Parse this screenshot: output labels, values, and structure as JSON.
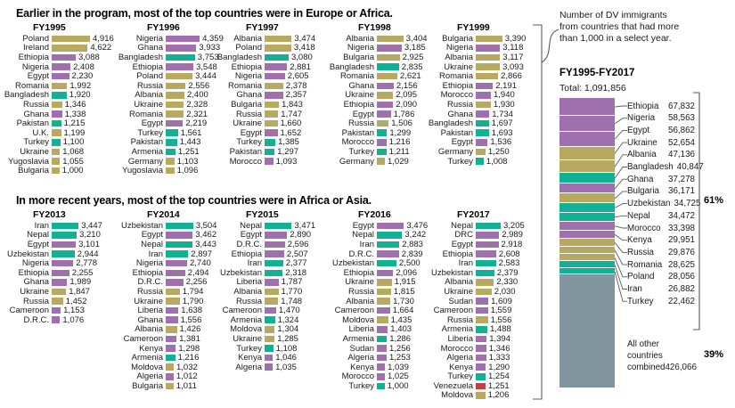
{
  "ui": {
    "annotation_lines": [
      "Number of DV immigrants",
      "from countries that had more",
      "than 1,000 in a select year."
    ],
    "summary_header": "FY1995-FY2017",
    "summary_total_label": "Total: 1,091,856",
    "named_share_label": "61%",
    "other_share_label": "39%",
    "other_label_line1": "All other countries",
    "other_label_line2": "combined",
    "other_value_label": "426,066"
  },
  "chart_data": {
    "type": "bar",
    "unit": "DV immigrants per fiscal year",
    "region_colors": {
      "europe": "#b7a95f",
      "africa": "#a06fad",
      "asia": "#12b195",
      "americas": "#c13d47",
      "other": "#80959d"
    },
    "groups": [
      {
        "title": "Earlier in the program, most of the top countries were in Europe or Africa.",
        "charts": [
          {
            "year": "FY1995",
            "rows": [
              [
                "Poland",
                4916,
                "europe"
              ],
              [
                "Ireland",
                4622,
                "europe"
              ],
              [
                "Ethiopia",
                3088,
                "africa"
              ],
              [
                "Nigeria",
                2408,
                "africa"
              ],
              [
                "Egypt",
                2230,
                "africa"
              ],
              [
                "Romania",
                1992,
                "europe"
              ],
              [
                "Bangladesh",
                1920,
                "asia"
              ],
              [
                "Russia",
                1346,
                "europe"
              ],
              [
                "Ghana",
                1338,
                "africa"
              ],
              [
                "Pakistan",
                1215,
                "asia"
              ],
              [
                "U.K.",
                1199,
                "europe"
              ],
              [
                "Turkey",
                1100,
                "asia"
              ],
              [
                "Ukraine",
                1068,
                "europe"
              ],
              [
                "Yugoslavia",
                1055,
                "europe"
              ],
              [
                "Bulgaria",
                1000,
                "europe"
              ]
            ]
          },
          {
            "year": "FY1996",
            "rows": [
              [
                "Nigeria",
                4359,
                "africa"
              ],
              [
                "Ghana",
                3933,
                "africa"
              ],
              [
                "Bangladesh",
                3753,
                "asia"
              ],
              [
                "Ethiopia",
                3548,
                "africa"
              ],
              [
                "Poland",
                3444,
                "europe"
              ],
              [
                "Russia",
                2556,
                "europe"
              ],
              [
                "Albania",
                2400,
                "europe"
              ],
              [
                "Ukraine",
                2328,
                "europe"
              ],
              [
                "Romania",
                2321,
                "europe"
              ],
              [
                "Egypt",
                2219,
                "africa"
              ],
              [
                "Turkey",
                1561,
                "asia"
              ],
              [
                "Pakistan",
                1443,
                "asia"
              ],
              [
                "Armenia",
                1251,
                "asia"
              ],
              [
                "Germany",
                1103,
                "europe"
              ],
              [
                "Yugoslavia",
                1096,
                "europe"
              ]
            ]
          },
          {
            "year": "FY1997",
            "rows": [
              [
                "Albania",
                3474,
                "europe"
              ],
              [
                "Poland",
                3418,
                "europe"
              ],
              [
                "Bangladesh",
                3080,
                "asia"
              ],
              [
                "Ethiopia",
                2881,
                "africa"
              ],
              [
                "Nigeria",
                2605,
                "africa"
              ],
              [
                "Romania",
                2378,
                "europe"
              ],
              [
                "Ghana",
                2357,
                "africa"
              ],
              [
                "Bulgaria",
                1843,
                "europe"
              ],
              [
                "Russia",
                1747,
                "europe"
              ],
              [
                "Ukraine",
                1660,
                "europe"
              ],
              [
                "Egypt",
                1652,
                "africa"
              ],
              [
                "Turkey",
                1385,
                "asia"
              ],
              [
                "Pakistan",
                1297,
                "asia"
              ],
              [
                "Morocco",
                1093,
                "africa"
              ]
            ]
          },
          {
            "year": "FY1998",
            "rows": [
              [
                "Albania",
                3404,
                "europe"
              ],
              [
                "Nigeria",
                3185,
                "africa"
              ],
              [
                "Bulgaria",
                2925,
                "europe"
              ],
              [
                "Bangladesh",
                2835,
                "asia"
              ],
              [
                "Romania",
                2621,
                "europe"
              ],
              [
                "Ghana",
                2156,
                "africa"
              ],
              [
                "Ukraine",
                2095,
                "europe"
              ],
              [
                "Ethiopia",
                2090,
                "africa"
              ],
              [
                "Egypt",
                1786,
                "africa"
              ],
              [
                "Russia",
                1506,
                "europe"
              ],
              [
                "Pakistan",
                1299,
                "asia"
              ],
              [
                "Morocco",
                1216,
                "africa"
              ],
              [
                "Turkey",
                1211,
                "asia"
              ],
              [
                "Germany",
                1029,
                "europe"
              ]
            ]
          },
          {
            "year": "FY1999",
            "rows": [
              [
                "Bulgaria",
                3390,
                "europe"
              ],
              [
                "Nigeria",
                3118,
                "africa"
              ],
              [
                "Albania",
                3117,
                "europe"
              ],
              [
                "Ukraine",
                3093,
                "europe"
              ],
              [
                "Romania",
                2866,
                "europe"
              ],
              [
                "Ethiopia",
                2191,
                "africa"
              ],
              [
                "Morocco",
                1940,
                "africa"
              ],
              [
                "Russia",
                1930,
                "europe"
              ],
              [
                "Ghana",
                1734,
                "africa"
              ],
              [
                "Bangladesh",
                1697,
                "asia"
              ],
              [
                "Pakistan",
                1693,
                "asia"
              ],
              [
                "Egypt",
                1536,
                "africa"
              ],
              [
                "Germany",
                1250,
                "europe"
              ],
              [
                "Turkey",
                1008,
                "asia"
              ]
            ]
          }
        ]
      },
      {
        "title": "In more recent years, most of the top countries were in Africa or Asia.",
        "charts": [
          {
            "year": "FY2013",
            "rows": [
              [
                "Iran",
                3447,
                "asia"
              ],
              [
                "Nepal",
                3210,
                "asia"
              ],
              [
                "Egypt",
                3101,
                "africa"
              ],
              [
                "Uzbekistan",
                2944,
                "asia"
              ],
              [
                "Nigeria",
                2778,
                "africa"
              ],
              [
                "Ethiopia",
                2255,
                "africa"
              ],
              [
                "Ghana",
                1989,
                "africa"
              ],
              [
                "Ukraine",
                1847,
                "europe"
              ],
              [
                "Russia",
                1452,
                "europe"
              ],
              [
                "Cameroon",
                1153,
                "africa"
              ],
              [
                "D.R.C.",
                1076,
                "africa"
              ]
            ]
          },
          {
            "year": "FY2014",
            "rows": [
              [
                "Uzbekistan",
                3504,
                "asia"
              ],
              [
                "Egypt",
                3462,
                "africa"
              ],
              [
                "Nepal",
                3443,
                "asia"
              ],
              [
                "Iran",
                2897,
                "asia"
              ],
              [
                "Nigeria",
                2740,
                "africa"
              ],
              [
                "Ethiopia",
                2494,
                "africa"
              ],
              [
                "D.R.C.",
                2256,
                "africa"
              ],
              [
                "Russia",
                1794,
                "europe"
              ],
              [
                "Ukraine",
                1790,
                "europe"
              ],
              [
                "Liberia",
                1638,
                "africa"
              ],
              [
                "Ghana",
                1556,
                "africa"
              ],
              [
                "Albania",
                1426,
                "europe"
              ],
              [
                "Cameroon",
                1381,
                "africa"
              ],
              [
                "Kenya",
                1298,
                "africa"
              ],
              [
                "Armenia",
                1216,
                "asia"
              ],
              [
                "Moldova",
                1032,
                "europe"
              ],
              [
                "Algeria",
                1012,
                "africa"
              ],
              [
                "Bulgaria",
                1011,
                "europe"
              ]
            ]
          },
          {
            "year": "FY2015",
            "rows": [
              [
                "Nepal",
                3471,
                "asia"
              ],
              [
                "Egypt",
                2890,
                "africa"
              ],
              [
                "D.R.C.",
                2596,
                "africa"
              ],
              [
                "Ethiopia",
                2507,
                "africa"
              ],
              [
                "Iran",
                2377,
                "asia"
              ],
              [
                "Uzbekistan",
                2318,
                "asia"
              ],
              [
                "Liberia",
                1787,
                "africa"
              ],
              [
                "Albania",
                1770,
                "europe"
              ],
              [
                "Russia",
                1748,
                "europe"
              ],
              [
                "Cameroon",
                1470,
                "africa"
              ],
              [
                "Armenia",
                1324,
                "asia"
              ],
              [
                "Moldova",
                1304,
                "europe"
              ],
              [
                "Ukraine",
                1285,
                "europe"
              ],
              [
                "Turkey",
                1108,
                "asia"
              ],
              [
                "Kenya",
                1046,
                "africa"
              ],
              [
                "Algeria",
                1035,
                "africa"
              ]
            ]
          },
          {
            "year": "FY2016",
            "rows": [
              [
                "Egypt",
                3476,
                "africa"
              ],
              [
                "Nepal",
                3242,
                "asia"
              ],
              [
                "Iran",
                2883,
                "asia"
              ],
              [
                "D.R.C.",
                2839,
                "africa"
              ],
              [
                "Uzbekistan",
                2500,
                "asia"
              ],
              [
                "Ethiopia",
                2096,
                "africa"
              ],
              [
                "Ukraine",
                1915,
                "europe"
              ],
              [
                "Russia",
                1815,
                "europe"
              ],
              [
                "Albania",
                1730,
                "europe"
              ],
              [
                "Cameroon",
                1664,
                "africa"
              ],
              [
                "Moldova",
                1435,
                "europe"
              ],
              [
                "Liberia",
                1403,
                "africa"
              ],
              [
                "Armenia",
                1286,
                "asia"
              ],
              [
                "Sudan",
                1256,
                "africa"
              ],
              [
                "Algeria",
                1253,
                "africa"
              ],
              [
                "Kenya",
                1039,
                "africa"
              ],
              [
                "Morocco",
                1025,
                "africa"
              ],
              [
                "Turkey",
                1000,
                "asia"
              ]
            ]
          },
          {
            "year": "FY2017",
            "rows": [
              [
                "Nepal",
                3205,
                "asia"
              ],
              [
                "DRC",
                2989,
                "africa"
              ],
              [
                "Egypt",
                2918,
                "africa"
              ],
              [
                "Ethiopia",
                2608,
                "africa"
              ],
              [
                "Iran",
                2583,
                "asia"
              ],
              [
                "Uzbekistan",
                2379,
                "asia"
              ],
              [
                "Albania",
                2330,
                "europe"
              ],
              [
                "Ukraine",
                2030,
                "europe"
              ],
              [
                "Sudan",
                1609,
                "africa"
              ],
              [
                "Cameroon",
                1559,
                "africa"
              ],
              [
                "Russia",
                1556,
                "europe"
              ],
              [
                "Armenia",
                1488,
                "asia"
              ],
              [
                "Liberia",
                1394,
                "africa"
              ],
              [
                "Morocco",
                1346,
                "africa"
              ],
              [
                "Algeria",
                1333,
                "africa"
              ],
              [
                "Kenya",
                1290,
                "africa"
              ],
              [
                "Turkey",
                1254,
                "asia"
              ],
              [
                "Venezuela",
                1251,
                "americas"
              ],
              [
                "Moldova",
                1206,
                "europe"
              ]
            ]
          }
        ]
      }
    ],
    "summary": {
      "label": "FY1995-FY2017",
      "total": 1091856,
      "named_share_pct": 61,
      "other_share_pct": 39,
      "segments": [
        [
          "Ethiopia",
          67832,
          "africa"
        ],
        [
          "Nigeria",
          58563,
          "africa"
        ],
        [
          "Egypt",
          56862,
          "africa"
        ],
        [
          "Ukraine",
          52654,
          "europe"
        ],
        [
          "Albania",
          47136,
          "europe"
        ],
        [
          "Bangladesh",
          40847,
          "asia"
        ],
        [
          "Ghana",
          37278,
          "africa"
        ],
        [
          "Bulgaria",
          36171,
          "europe"
        ],
        [
          "Uzbekistan",
          34725,
          "asia"
        ],
        [
          "Nepal",
          34472,
          "asia"
        ],
        [
          "Morocco",
          33398,
          "africa"
        ],
        [
          "Kenya",
          29951,
          "africa"
        ],
        [
          "Russia",
          29876,
          "europe"
        ],
        [
          "Romania",
          28625,
          "europe"
        ],
        [
          "Poland",
          28056,
          "europe"
        ],
        [
          "Iran",
          26882,
          "asia"
        ],
        [
          "Turkey",
          22462,
          "asia"
        ]
      ],
      "other": [
        "All other countries combined",
        426066,
        "other"
      ]
    }
  }
}
